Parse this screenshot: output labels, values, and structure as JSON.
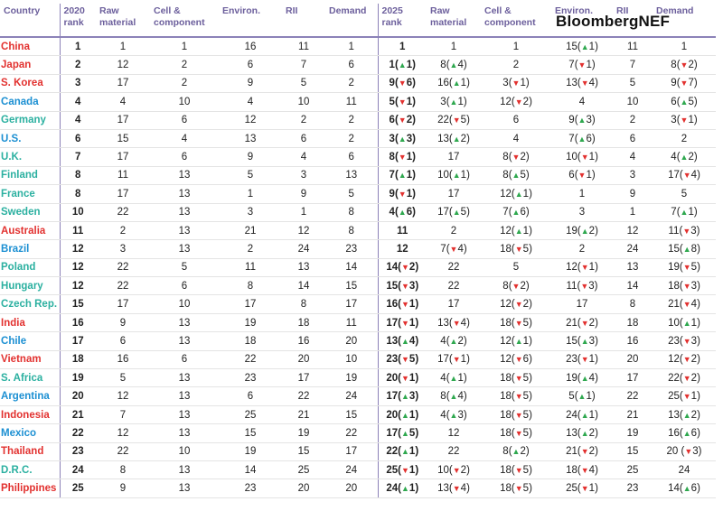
{
  "header": {
    "columns": [
      "Country",
      "2020\nrank",
      "Raw\nmaterial",
      "Cell &\ncomponent",
      "Environ.",
      "RII",
      "Demand",
      "2025\nrank",
      "Raw\nmaterial",
      "Cell &\ncomponent",
      "Environ.",
      "RII",
      "Demand"
    ],
    "logo": "BloombergNEF"
  },
  "table": {
    "rows": [
      {
        "color": "#e2312f",
        "cells": [
          "China",
          "1",
          "1",
          "1",
          "16",
          "11",
          "1",
          "1",
          "1",
          "1",
          "15(▲1)",
          "11",
          "1"
        ]
      },
      {
        "color": "#e2312f",
        "cells": [
          "Japan",
          "2",
          "12",
          "2",
          "6",
          "7",
          "6",
          "1(▲1)",
          "8(▲4)",
          "2",
          "7(▼1)",
          "7",
          "8(▼2)"
        ]
      },
      {
        "color": "#e2312f",
        "cells": [
          "S. Korea",
          "3",
          "17",
          "2",
          "9",
          "5",
          "2",
          "9(▼6)",
          "16(▲1)",
          "3(▼1)",
          "13(▼4)",
          "5",
          "9(▼7)"
        ]
      },
      {
        "color": "#1b8fd2",
        "cells": [
          "Canada",
          "4",
          "4",
          "10",
          "4",
          "10",
          "11",
          "5(▼1)",
          "3(▲1)",
          "12(▼2)",
          "4",
          "10",
          "6(▲5)"
        ]
      },
      {
        "color": "#2bb0a0",
        "cells": [
          "Germany",
          "4",
          "17",
          "6",
          "12",
          "2",
          "2",
          "6(▼2)",
          "22(▼5)",
          "6",
          "9(▲3)",
          "2",
          "3(▼1)"
        ]
      },
      {
        "color": "#1b8fd2",
        "cells": [
          "U.S.",
          "6",
          "15",
          "4",
          "13",
          "6",
          "2",
          "3(▲3)",
          "13(▲2)",
          "4",
          "7(▲6)",
          "6",
          "2"
        ]
      },
      {
        "color": "#2bb0a0",
        "cells": [
          "U.K.",
          "7",
          "17",
          "6",
          "9",
          "4",
          "6",
          "8(▼1)",
          "17",
          "8(▼2)",
          "10(▼1)",
          "4",
          "4(▲2)"
        ]
      },
      {
        "color": "#2bb0a0",
        "cells": [
          "Finland",
          "8",
          "11",
          "13",
          "5",
          "3",
          "13",
          "7(▲1)",
          "10(▲1)",
          "8(▲5)",
          "6(▼1)",
          "3",
          "17(▼4)"
        ]
      },
      {
        "color": "#2bb0a0",
        "cells": [
          "France",
          "8",
          "17",
          "13",
          "1",
          "9",
          "5",
          "9(▼1)",
          "17",
          "12(▲1)",
          "1",
          "9",
          "5"
        ]
      },
      {
        "color": "#2bb0a0",
        "cells": [
          "Sweden",
          "10",
          "22",
          "13",
          "3",
          "1",
          "8",
          "4(▲6)",
          "17(▲5)",
          "7(▲6)",
          "3",
          "1",
          "7(▲1)"
        ]
      },
      {
        "color": "#e2312f",
        "cells": [
          "Australia",
          "11",
          "2",
          "13",
          "21",
          "12",
          "8",
          "11",
          "2",
          "12(▲1)",
          "19(▲2)",
          "12",
          "11(▼3)"
        ]
      },
      {
        "color": "#1b8fd2",
        "cells": [
          "Brazil",
          "12",
          "3",
          "13",
          "2",
          "24",
          "23",
          "12",
          "7(▼4)",
          "18(▼5)",
          "2",
          "24",
          "15(▲8)"
        ]
      },
      {
        "color": "#2bb0a0",
        "cells": [
          "Poland",
          "12",
          "22",
          "5",
          "11",
          "13",
          "14",
          "14(▼2)",
          "22",
          "5",
          "12(▼1)",
          "13",
          "19(▼5)"
        ]
      },
      {
        "color": "#2bb0a0",
        "cells": [
          "Hungary",
          "12",
          "22",
          "6",
          "8",
          "14",
          "15",
          "15(▼3)",
          "22",
          "8(▼2)",
          "11(▼3)",
          "14",
          "18(▼3)"
        ]
      },
      {
        "color": "#2bb0a0",
        "cells": [
          "Czech Rep.",
          "15",
          "17",
          "10",
          "17",
          "8",
          "17",
          "16(▼1)",
          "17",
          "12(▼2)",
          "17",
          "8",
          "21(▼4)"
        ]
      },
      {
        "color": "#e2312f",
        "cells": [
          "India",
          "16",
          "9",
          "13",
          "19",
          "18",
          "11",
          "17(▼1)",
          "13(▼4)",
          "18(▼5)",
          "21(▼2)",
          "18",
          "10(▲1)"
        ]
      },
      {
        "color": "#1b8fd2",
        "cells": [
          "Chile",
          "17",
          "6",
          "13",
          "18",
          "16",
          "20",
          "13(▲4)",
          "4(▲2)",
          "12(▲1)",
          "15(▲3)",
          "16",
          "23(▼3)"
        ]
      },
      {
        "color": "#e2312f",
        "cells": [
          "Vietnam",
          "18",
          "16",
          "6",
          "22",
          "20",
          "10",
          "23(▼5)",
          "17(▼1)",
          "12(▼6)",
          "23(▼1)",
          "20",
          "12(▼2)"
        ]
      },
      {
        "color": "#2bb0a0",
        "cells": [
          "S. Africa",
          "19",
          "5",
          "13",
          "23",
          "17",
          "19",
          "20(▼1)",
          "4(▲1)",
          "18(▼5)",
          "19(▲4)",
          "17",
          "22(▼2)"
        ]
      },
      {
        "color": "#1b8fd2",
        "cells": [
          "Argentina",
          "20",
          "12",
          "13",
          "6",
          "22",
          "24",
          "17(▲3)",
          "8(▲4)",
          "18(▼5)",
          "5(▲1)",
          "22",
          "25(▼1)"
        ]
      },
      {
        "color": "#e2312f",
        "cells": [
          "Indonesia",
          "21",
          "7",
          "13",
          "25",
          "21",
          "15",
          "20(▲1)",
          "4(▲3)",
          "18(▼5)",
          "24(▲1)",
          "21",
          "13(▲2)"
        ]
      },
      {
        "color": "#1b8fd2",
        "cells": [
          "Mexico",
          "22",
          "12",
          "13",
          "15",
          "19",
          "22",
          "17(▲5)",
          "12",
          "18(▼5)",
          "13(▲2)",
          "19",
          "16(▲6)"
        ]
      },
      {
        "color": "#e2312f",
        "cells": [
          "Thailand",
          "23",
          "22",
          "10",
          "19",
          "15",
          "17",
          "22(▲1)",
          "22",
          "8(▲2)",
          "21(▼2)",
          "15",
          "20 (▼3)"
        ]
      },
      {
        "color": "#2bb0a0",
        "cells": [
          "D.R.C.",
          "24",
          "8",
          "13",
          "14",
          "25",
          "24",
          "25(▼1)",
          "10(▼2)",
          "18(▼5)",
          "18(▼4)",
          "25",
          "24"
        ]
      },
      {
        "color": "#e2312f",
        "cells": [
          "Philippines",
          "25",
          "9",
          "13",
          "23",
          "20",
          "20",
          "24(▲1)",
          "13(▼4)",
          "18(▼5)",
          "25(▼1)",
          "23",
          "14(▲6)"
        ]
      }
    ]
  }
}
